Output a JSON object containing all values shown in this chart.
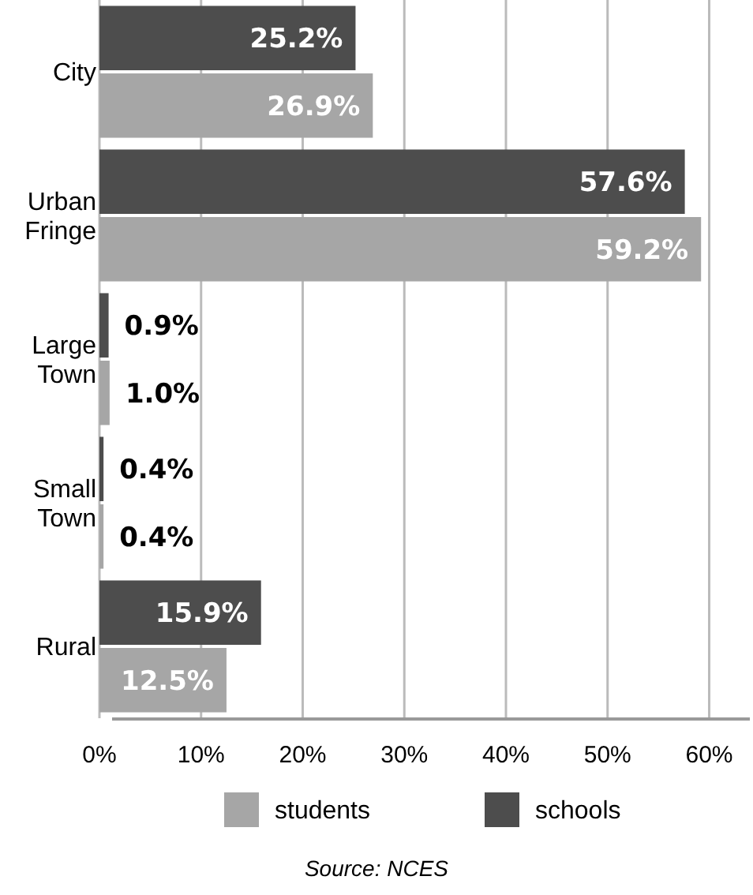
{
  "chart_data": {
    "type": "bar",
    "orientation": "horizontal",
    "categories": [
      "City",
      "Urban Fringe",
      "Large Town",
      "Small Town",
      "Rural"
    ],
    "series": [
      {
        "name": "schools",
        "color": "#4d4d4d",
        "values": [
          25.2,
          57.6,
          0.9,
          0.4,
          15.9
        ]
      },
      {
        "name": "students",
        "color": "#a6a6a6",
        "values": [
          26.9,
          59.2,
          1.0,
          0.4,
          12.5
        ]
      }
    ],
    "value_labels": [
      [
        "25.2%",
        "57.6%",
        "0.9%",
        "0.4%",
        "15.9%"
      ],
      [
        "26.9%",
        "59.2%",
        "1.0%",
        "0.4%",
        "12.5%"
      ]
    ],
    "xlim": [
      0,
      64
    ],
    "xticks": [
      {
        "value": 0,
        "label": "0%"
      },
      {
        "value": 10,
        "label": "10%"
      },
      {
        "value": 20,
        "label": "20%"
      },
      {
        "value": 30,
        "label": "30%"
      },
      {
        "value": 40,
        "label": "40%"
      },
      {
        "value": 50,
        "label": "50%"
      },
      {
        "value": 60,
        "label": "60%"
      }
    ],
    "grid": "x",
    "legend": "bottom",
    "annotations": [
      "Source: NCES"
    ]
  }
}
